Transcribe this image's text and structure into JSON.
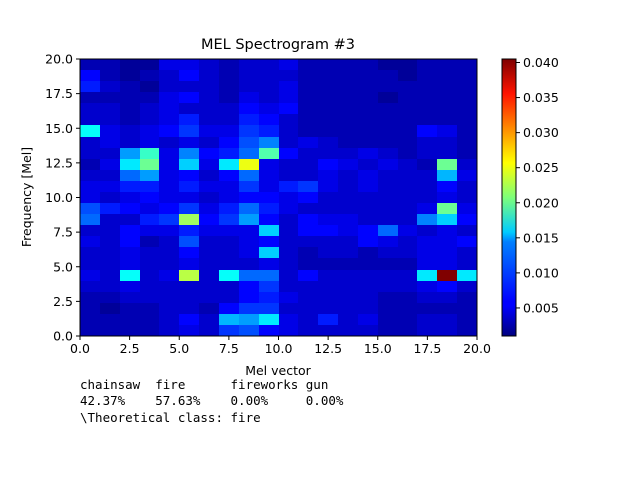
{
  "chart_data": {
    "type": "heatmap",
    "title": "MEL Spectrogram #3",
    "xlabel": "Mel vector",
    "ylabel": "Frequency [Mel]",
    "xlim": [
      0,
      20
    ],
    "ylim": [
      0,
      20
    ],
    "x_ticks": [
      "0.0",
      "2.5",
      "5.0",
      "7.5",
      "10.0",
      "12.5",
      "15.0",
      "17.5",
      "20.0"
    ],
    "y_ticks": [
      "0.0",
      "2.5",
      "5.0",
      "7.5",
      "10.0",
      "12.5",
      "15.0",
      "17.5",
      "20.0"
    ],
    "colormap": "jet",
    "colorbar": {
      "range": [
        0.001,
        0.0405
      ],
      "ticks": [
        "0.005",
        "0.010",
        "0.015",
        "0.020",
        "0.025",
        "0.030",
        "0.035",
        "0.040"
      ]
    },
    "grid": false,
    "cell_values_rows_top_to_bottom": [
      [
        0.003,
        0.003,
        0.002,
        0.002,
        0.005,
        0.005,
        0.004,
        0.003,
        0.004,
        0.004,
        0.005,
        0.003,
        0.003,
        0.003,
        0.003,
        0.002,
        0.002,
        0.003,
        0.003,
        0.003
      ],
      [
        0.006,
        0.003,
        0.002,
        0.003,
        0.004,
        0.006,
        0.004,
        0.003,
        0.004,
        0.004,
        0.004,
        0.003,
        0.003,
        0.003,
        0.003,
        0.003,
        0.002,
        0.003,
        0.003,
        0.003
      ],
      [
        0.007,
        0.004,
        0.003,
        0.002,
        0.004,
        0.004,
        0.004,
        0.003,
        0.004,
        0.004,
        0.005,
        0.003,
        0.003,
        0.003,
        0.003,
        0.003,
        0.003,
        0.003,
        0.003,
        0.003
      ],
      [
        0.003,
        0.003,
        0.003,
        0.003,
        0.005,
        0.006,
        0.004,
        0.003,
        0.005,
        0.004,
        0.005,
        0.003,
        0.003,
        0.003,
        0.003,
        0.002,
        0.003,
        0.003,
        0.003,
        0.003
      ],
      [
        0.004,
        0.004,
        0.003,
        0.004,
        0.005,
        0.004,
        0.004,
        0.004,
        0.006,
        0.005,
        0.006,
        0.003,
        0.003,
        0.003,
        0.003,
        0.003,
        0.003,
        0.003,
        0.003,
        0.003
      ],
      [
        0.004,
        0.004,
        0.003,
        0.004,
        0.005,
        0.007,
        0.004,
        0.004,
        0.007,
        0.006,
        0.004,
        0.003,
        0.003,
        0.003,
        0.003,
        0.003,
        0.003,
        0.003,
        0.003,
        0.003
      ],
      [
        0.016,
        0.005,
        0.004,
        0.005,
        0.006,
        0.008,
        0.005,
        0.005,
        0.008,
        0.007,
        0.004,
        0.003,
        0.003,
        0.003,
        0.003,
        0.003,
        0.003,
        0.006,
        0.005,
        0.003
      ],
      [
        0.004,
        0.005,
        0.004,
        0.005,
        0.004,
        0.005,
        0.004,
        0.006,
        0.009,
        0.011,
        0.004,
        0.005,
        0.004,
        0.003,
        0.003,
        0.003,
        0.003,
        0.004,
        0.004,
        0.003
      ],
      [
        0.004,
        0.004,
        0.012,
        0.018,
        0.005,
        0.011,
        0.006,
        0.007,
        0.01,
        0.019,
        0.006,
        0.004,
        0.004,
        0.004,
        0.005,
        0.004,
        0.003,
        0.004,
        0.004,
        0.003
      ],
      [
        0.003,
        0.005,
        0.015,
        0.02,
        0.005,
        0.014,
        0.005,
        0.015,
        0.025,
        0.005,
        0.004,
        0.004,
        0.006,
        0.005,
        0.004,
        0.005,
        0.004,
        0.003,
        0.02,
        0.004
      ],
      [
        0.004,
        0.004,
        0.01,
        0.012,
        0.005,
        0.006,
        0.004,
        0.006,
        0.01,
        0.005,
        0.004,
        0.004,
        0.005,
        0.004,
        0.005,
        0.004,
        0.004,
        0.004,
        0.013,
        0.005
      ],
      [
        0.005,
        0.005,
        0.007,
        0.007,
        0.005,
        0.007,
        0.005,
        0.005,
        0.008,
        0.005,
        0.007,
        0.008,
        0.005,
        0.004,
        0.005,
        0.004,
        0.004,
        0.004,
        0.006,
        0.004
      ],
      [
        0.005,
        0.004,
        0.005,
        0.006,
        0.005,
        0.005,
        0.004,
        0.005,
        0.006,
        0.006,
        0.005,
        0.006,
        0.004,
        0.004,
        0.004,
        0.004,
        0.004,
        0.004,
        0.005,
        0.004
      ],
      [
        0.009,
        0.007,
        0.006,
        0.005,
        0.006,
        0.008,
        0.005,
        0.007,
        0.01,
        0.007,
        0.005,
        0.004,
        0.004,
        0.004,
        0.004,
        0.004,
        0.004,
        0.005,
        0.02,
        0.005
      ],
      [
        0.01,
        0.004,
        0.004,
        0.007,
        0.008,
        0.022,
        0.006,
        0.008,
        0.012,
        0.006,
        0.004,
        0.006,
        0.005,
        0.005,
        0.004,
        0.004,
        0.004,
        0.011,
        0.014,
        0.006
      ],
      [
        0.004,
        0.004,
        0.006,
        0.005,
        0.005,
        0.007,
        0.005,
        0.005,
        0.005,
        0.014,
        0.004,
        0.006,
        0.006,
        0.005,
        0.006,
        0.01,
        0.005,
        0.004,
        0.005,
        0.004
      ],
      [
        0.005,
        0.004,
        0.006,
        0.003,
        0.004,
        0.009,
        0.004,
        0.004,
        0.005,
        0.006,
        0.004,
        0.004,
        0.004,
        0.004,
        0.006,
        0.005,
        0.004,
        0.005,
        0.005,
        0.006
      ],
      [
        0.004,
        0.004,
        0.005,
        0.004,
        0.004,
        0.006,
        0.004,
        0.004,
        0.005,
        0.014,
        0.004,
        0.003,
        0.004,
        0.004,
        0.003,
        0.004,
        0.004,
        0.005,
        0.005,
        0.004
      ],
      [
        0.004,
        0.004,
        0.005,
        0.004,
        0.004,
        0.005,
        0.004,
        0.004,
        0.004,
        0.005,
        0.004,
        0.003,
        0.003,
        0.003,
        0.003,
        0.003,
        0.003,
        0.005,
        0.005,
        0.004
      ],
      [
        0.005,
        0.004,
        0.016,
        0.004,
        0.005,
        0.023,
        0.004,
        0.016,
        0.01,
        0.01,
        0.004,
        0.006,
        0.004,
        0.004,
        0.004,
        0.004,
        0.004,
        0.015,
        0.041,
        0.015
      ],
      [
        0.004,
        0.004,
        0.005,
        0.004,
        0.004,
        0.004,
        0.004,
        0.004,
        0.006,
        0.008,
        0.004,
        0.004,
        0.004,
        0.004,
        0.004,
        0.004,
        0.004,
        0.005,
        0.006,
        0.004
      ],
      [
        0.003,
        0.003,
        0.004,
        0.004,
        0.004,
        0.004,
        0.004,
        0.004,
        0.006,
        0.007,
        0.005,
        0.004,
        0.004,
        0.004,
        0.004,
        0.003,
        0.003,
        0.004,
        0.004,
        0.003
      ],
      [
        0.003,
        0.002,
        0.003,
        0.003,
        0.004,
        0.004,
        0.003,
        0.006,
        0.008,
        0.008,
        0.004,
        0.004,
        0.004,
        0.004,
        0.004,
        0.003,
        0.003,
        0.003,
        0.003,
        0.003
      ],
      [
        0.003,
        0.003,
        0.003,
        0.003,
        0.004,
        0.006,
        0.004,
        0.013,
        0.012,
        0.015,
        0.005,
        0.004,
        0.007,
        0.004,
        0.005,
        0.003,
        0.003,
        0.004,
        0.004,
        0.003
      ],
      [
        0.003,
        0.003,
        0.003,
        0.003,
        0.004,
        0.005,
        0.004,
        0.008,
        0.009,
        0.006,
        0.005,
        0.004,
        0.004,
        0.004,
        0.004,
        0.003,
        0.003,
        0.004,
        0.004,
        0.003
      ]
    ]
  },
  "caption": {
    "line1": "chainsaw  fire      fireworks gun",
    "line2": "42.37%    57.63%    0.00%     0.00%",
    "line3": "\\Theoretical class: fire"
  }
}
